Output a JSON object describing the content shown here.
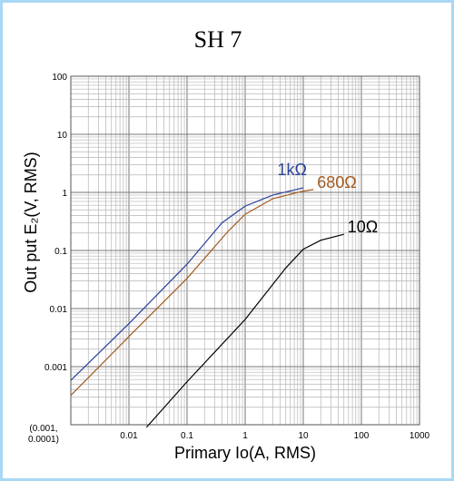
{
  "chart_data": {
    "type": "line",
    "title": "SH 7",
    "xlabel": "Primary Io(A, RMS)",
    "ylabel": "Out put E₂(V, RMS)",
    "x_scale": "log",
    "y_scale": "log",
    "xlim": [
      0.001,
      1000
    ],
    "ylim": [
      0.0001,
      100
    ],
    "grid": true,
    "origin_label_line1": "(0.001,",
    "origin_label_line2": "0.0001)",
    "x_ticks": [
      {
        "value": 0.01,
        "label": "0.01"
      },
      {
        "value": 0.1,
        "label": "0.1"
      },
      {
        "value": 1,
        "label": "1"
      },
      {
        "value": 10,
        "label": "10"
      },
      {
        "value": 100,
        "label": "100"
      },
      {
        "value": 1000,
        "label": "1000"
      }
    ],
    "y_ticks": [
      {
        "value": 100,
        "label": "100"
      },
      {
        "value": 10,
        "label": "10"
      },
      {
        "value": 1,
        "label": "1"
      },
      {
        "value": 0.1,
        "label": "0.1"
      },
      {
        "value": 0.01,
        "label": "0.01"
      },
      {
        "value": 0.001,
        "label": "0.001"
      }
    ],
    "series": [
      {
        "name": "1kΩ",
        "color": "#2b3f9a",
        "points": [
          [
            0.001,
            0.00058
          ],
          [
            0.01,
            0.0055
          ],
          [
            0.1,
            0.058
          ],
          [
            0.4,
            0.3
          ],
          [
            1,
            0.58
          ],
          [
            3,
            0.9
          ],
          [
            10,
            1.2
          ]
        ]
      },
      {
        "name": "680Ω",
        "color": "#a35a1e",
        "points": [
          [
            0.001,
            0.00032
          ],
          [
            0.01,
            0.0033
          ],
          [
            0.1,
            0.033
          ],
          [
            0.5,
            0.21
          ],
          [
            1,
            0.42
          ],
          [
            3,
            0.78
          ],
          [
            10,
            1.05
          ],
          [
            15,
            1.12
          ]
        ]
      },
      {
        "name": "10Ω",
        "color": "#000000",
        "points": [
          [
            0.02,
            9e-05
          ],
          [
            0.1,
            0.00055
          ],
          [
            1,
            0.0065
          ],
          [
            5,
            0.05
          ],
          [
            10,
            0.105
          ],
          [
            20,
            0.15
          ],
          [
            50,
            0.19
          ]
        ]
      }
    ]
  }
}
